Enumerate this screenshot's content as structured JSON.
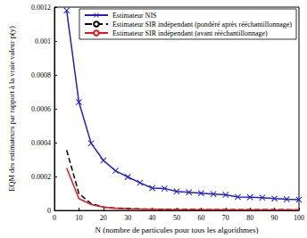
{
  "chart_data": {
    "type": "line",
    "x_label": "N (nombre de particules pour tous les algorithmes)",
    "y_label": "EQM des estimateurs par rapport à la vraie valeur p(y)",
    "x": [
      5,
      10,
      15,
      20,
      25,
      30,
      35,
      40,
      45,
      50,
      55,
      60,
      65,
      70,
      75,
      80,
      85,
      90,
      95,
      100
    ],
    "series": [
      {
        "name": "Estimateur NIS",
        "color": "#1f1fd0",
        "marker": "x",
        "line_style": "solid",
        "values": [
          0.00118,
          0.00064,
          0.000397,
          0.000295,
          0.000234,
          0.000198,
          0.000163,
          0.000132,
          0.00013,
          0.000112,
          0.000107,
          0.000102,
          9.7e-05,
          9.2e-05,
          8e-05,
          7.8e-05,
          7.6e-05,
          7e-05,
          6.6e-05,
          6.4e-05
        ]
      },
      {
        "name": "Estimateur SIR indépendant (pondéré après rééchantillonnage)",
        "color": "#000000",
        "marker": "none",
        "line_style": "dashed",
        "values": [
          0.000356,
          0.0001,
          4e-05,
          2e-05,
          1.4e-05,
          1.1e-05,
          9e-06,
          8e-06,
          7e-06,
          6e-06,
          6e-06,
          5e-06,
          5e-06,
          5e-06,
          4e-06,
          4e-06,
          4e-06,
          4e-06,
          4e-06,
          3e-06
        ]
      },
      {
        "name": "Estimateur SIR indépendant (avant rééchantillonnage)",
        "color": "#e8141c",
        "marker": "none",
        "line_style": "solid",
        "values": [
          0.00025,
          7e-05,
          3.5e-05,
          2e-05,
          1.3e-05,
          1e-05,
          8e-06,
          7e-06,
          6e-06,
          5e-06,
          5e-06,
          4e-06,
          4e-06,
          4e-06,
          3e-06,
          3e-06,
          3e-06,
          3e-06,
          3e-06,
          3e-06
        ]
      }
    ],
    "xlim": [
      0,
      100
    ],
    "xticks": [
      0,
      10,
      20,
      30,
      40,
      50,
      60,
      70,
      80,
      90,
      100
    ],
    "ylim": [
      0,
      0.0012
    ],
    "yticks": [
      0,
      0.0002,
      0.0004,
      0.0006,
      0.0008,
      0.001,
      0.0012
    ],
    "grid": false,
    "legend": "upper right"
  }
}
